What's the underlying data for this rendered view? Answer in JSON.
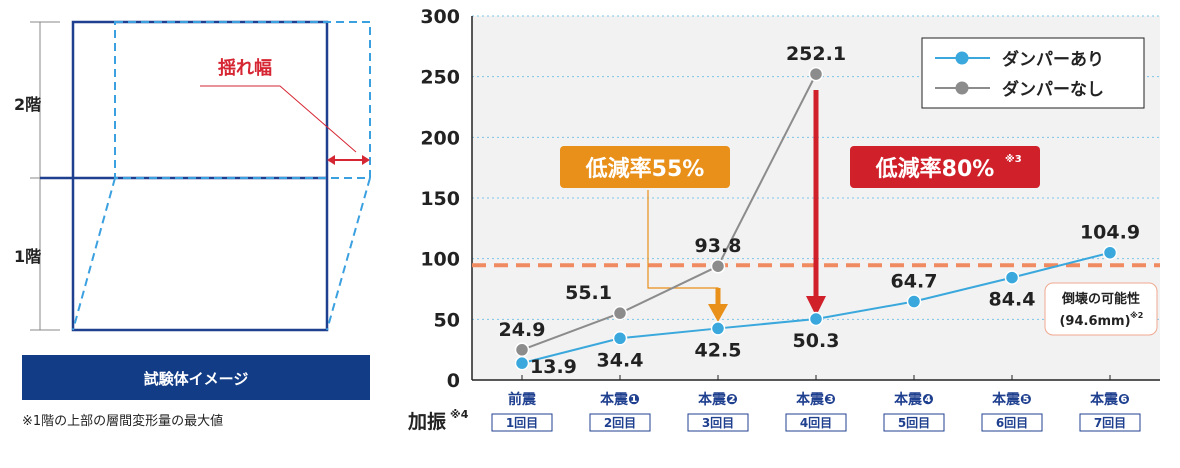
{
  "diagram": {
    "floor2_label": "2階",
    "floor1_label": "1階",
    "sway_label": "揺れ幅",
    "banner": "試験体イメージ",
    "footnote": "※1階の上部の層間変形量の最大値",
    "colors": {
      "frame": "#1f3f8f",
      "dashed": "#3aa0e0",
      "sway": "#d62633",
      "banner": "#123c86"
    }
  },
  "chart_data": {
    "type": "line",
    "ylim": [
      0,
      300
    ],
    "yticks": [
      0,
      50,
      100,
      150,
      200,
      250,
      300
    ],
    "grid": true,
    "legend_placement": "top-right",
    "categories": [
      "前震",
      "本震❶",
      "本震❷",
      "本震❸",
      "本震❹",
      "本震❺",
      "本震❻"
    ],
    "subcategories": [
      "1回目",
      "2回目",
      "3回目",
      "4回目",
      "5回目",
      "6回目",
      "7回目"
    ],
    "xlabel": "加振",
    "xlabel_note": "※4",
    "series": [
      {
        "name": "ダンパーあり",
        "color": "#3aa8dc",
        "values": [
          13.9,
          34.4,
          42.5,
          50.3,
          64.7,
          84.4,
          104.9
        ]
      },
      {
        "name": "ダンパーなし",
        "color": "#8c8c8c",
        "values": [
          24.9,
          55.1,
          93.8,
          252.1,
          null,
          null,
          null
        ]
      }
    ],
    "threshold": {
      "value": 94.6,
      "label": "倒壊の可能性",
      "sublabel": "(94.6mm)",
      "note": "※2",
      "color": "#f08a60"
    },
    "annotations": [
      {
        "text": "低減率55%",
        "note": "",
        "color": "#e8901a",
        "category_index": 2
      },
      {
        "text": "低減率80%",
        "note": "※3",
        "color": "#d0202a",
        "category_index": 3
      }
    ]
  }
}
